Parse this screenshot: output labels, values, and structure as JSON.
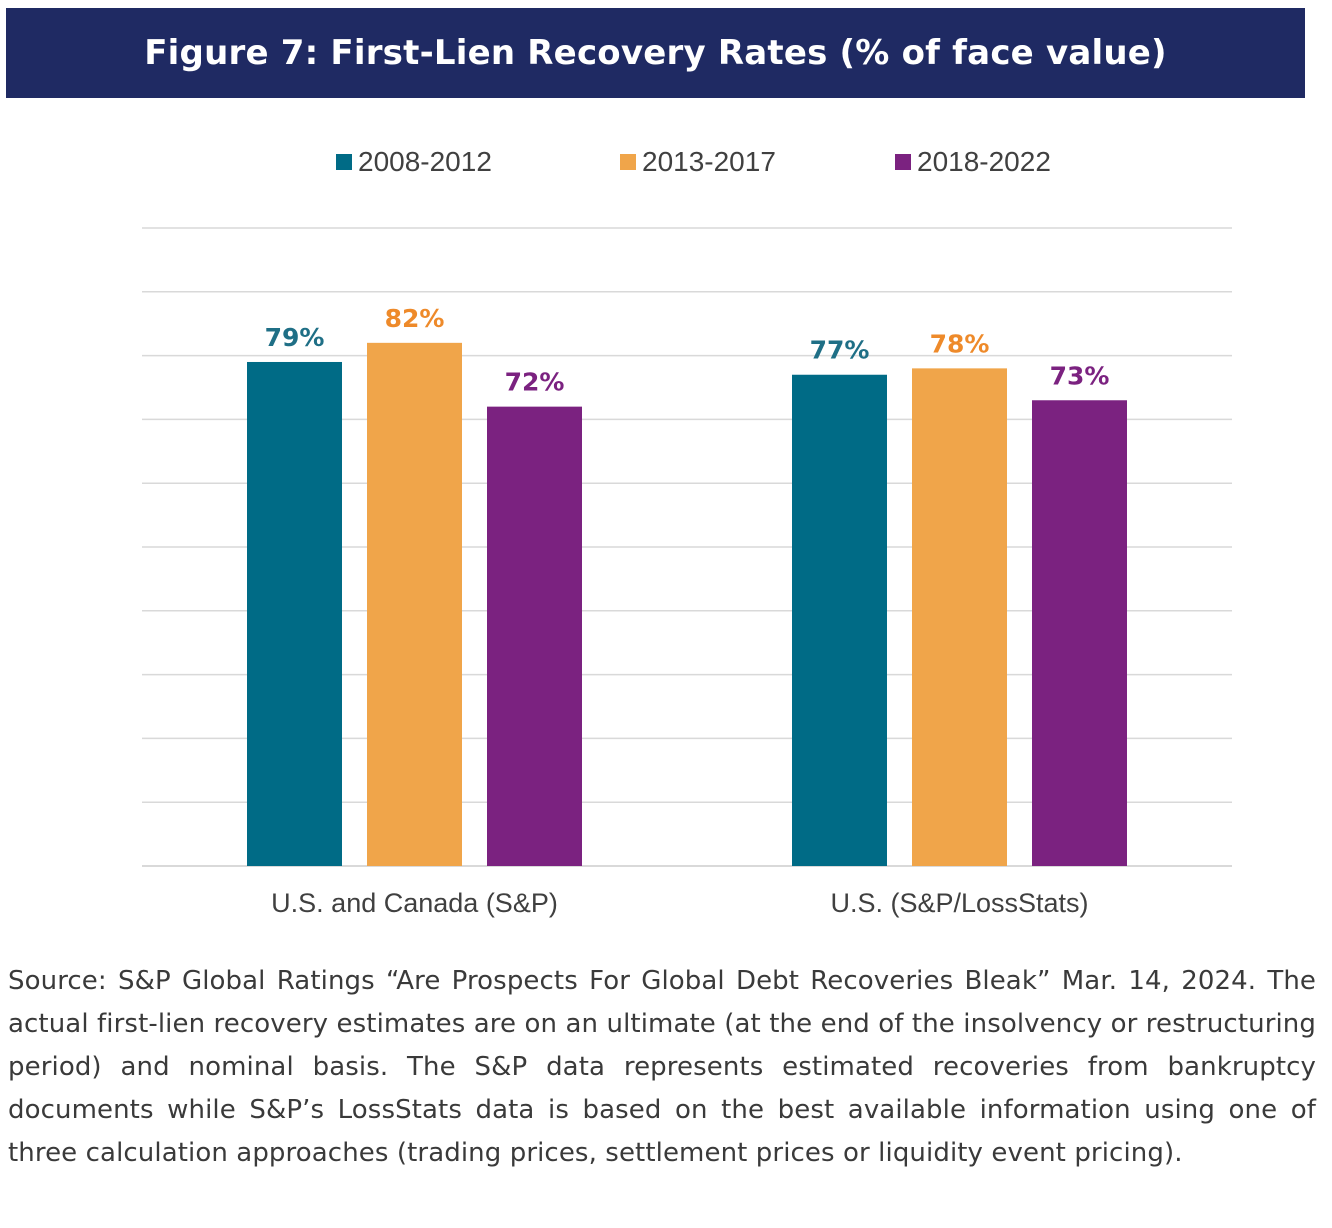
{
  "title": "Figure 7: First-Lien Recovery Rates (% of face value)",
  "colors": {
    "title_bg": "#1f2a63",
    "series": [
      "#006b86",
      "#f0a54a",
      "#7b2280"
    ],
    "label_colors": [
      "#1f6f86",
      "#ee8a2a",
      "#7b2280"
    ],
    "gridline": "#d9d9d9"
  },
  "chart_data": {
    "type": "bar",
    "title": "Figure 7: First-Lien Recovery Rates (% of face value)",
    "xlabel": "",
    "ylabel": "",
    "ylim": [
      0,
      100
    ],
    "grid": true,
    "gridline_step": 10,
    "legend_position": "top-center",
    "categories": [
      "U.S. and Canada (S&P)",
      "U.S. (S&P/LossStats)"
    ],
    "series": [
      {
        "name": "2008-2012",
        "values": [
          79,
          77
        ],
        "labels": [
          "79%",
          "77%"
        ]
      },
      {
        "name": "2013-2017",
        "values": [
          82,
          78
        ],
        "labels": [
          "82%",
          "78%"
        ]
      },
      {
        "name": "2018-2022",
        "values": [
          72,
          73
        ],
        "labels": [
          "72%",
          "73%"
        ]
      }
    ]
  },
  "legend": [
    {
      "label": "2008-2012"
    },
    {
      "label": "2013-2017"
    },
    {
      "label": "2018-2022"
    }
  ],
  "source_text": "Source: S&P Global Ratings “Are Prospects For Global Debt Recoveries Bleak” Mar. 14, 2024. The actual first-lien recovery estimates are on an ultimate (at the end of the insolvency or restructuring period) and nominal basis. The S&P data represents estimated recoveries from bankruptcy documents while S&P’s LossStats data is based on the best available information using one of three calculation approaches (trading prices, settlement prices or liquidity event pricing)."
}
